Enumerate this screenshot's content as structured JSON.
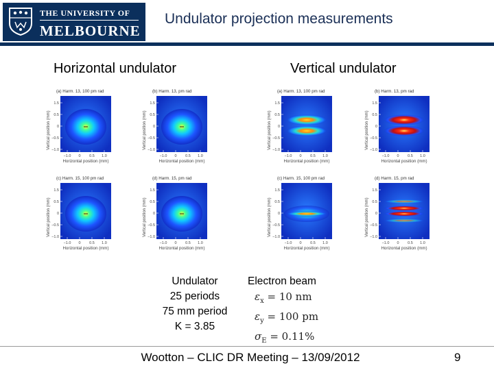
{
  "header": {
    "logo_line1": "THE UNIVERSITY OF",
    "logo_line2": "MELBOURNE",
    "title": "Undulator projection measurements",
    "bar_color": "#0b2f5c"
  },
  "columns": {
    "horizontal_title": "Horizontal undulator",
    "vertical_title": "Vertical undulator"
  },
  "plots": {
    "panels": [
      {
        "caption": "(a) Harm. 13, 100 pm rad",
        "xlabel": "Horizontal position (mm)",
        "ylabel": "Vertical position (mm)",
        "pattern": "single-blob"
      },
      {
        "caption": "(b) Harm. 13, pm rad",
        "xlabel": "Horizontal position (mm)",
        "ylabel": "Vertical position (mm)",
        "pattern": "single-blob"
      },
      {
        "caption": "(a) Harm. 13, 100 pm rad",
        "xlabel": "Horizontal position (mm)",
        "ylabel": "Vertical position (mm)",
        "pattern": "double-lobe"
      },
      {
        "caption": "(b) Harm. 13, pm rad",
        "xlabel": "Horizontal position (mm)",
        "ylabel": "Vertical position (mm)",
        "pattern": "double-lobe-hot"
      },
      {
        "caption": "(c) Harm. 15, 100 pm rad",
        "xlabel": "Horizontal position (mm)",
        "ylabel": "Vertical position (mm)",
        "pattern": "single-blob"
      },
      {
        "caption": "(d) Harm. 15, pm rad",
        "xlabel": "Horizontal position (mm)",
        "ylabel": "Vertical position (mm)",
        "pattern": "single-blob"
      },
      {
        "caption": "(c) Harm. 15, 100 pm rad",
        "xlabel": "Horizontal position (mm)",
        "ylabel": "Vertical position (mm)",
        "pattern": "flat-line"
      },
      {
        "caption": "(d) Harm. 15, pm rad",
        "xlabel": "Horizontal position (mm)",
        "ylabel": "Vertical position (mm)",
        "pattern": "multi-band"
      }
    ],
    "y_ticks": [
      "1.5",
      "0.5",
      "0",
      "−0.5",
      "−1.0"
    ],
    "x_ticks": [
      "−1.0",
      "0",
      "0.5",
      "1.0"
    ]
  },
  "undulator": {
    "heading": "Undulator",
    "periods": "25 periods",
    "period_length": "75 mm period",
    "k_value": "K = 3.85"
  },
  "electron_beam": {
    "heading": "Electron beam",
    "ex_symbol": "ε",
    "ex_sub": "x",
    "ex_value": "= 10 nm",
    "ey_symbol": "ε",
    "ey_sub": "y",
    "ey_value": "= 100 pm",
    "se_symbol": "σ",
    "se_sub": "E",
    "se_value": "= 0.11%"
  },
  "footer": {
    "text": "Wootton – CLIC DR Meeting – 13/09/2012",
    "page_number": "9"
  }
}
